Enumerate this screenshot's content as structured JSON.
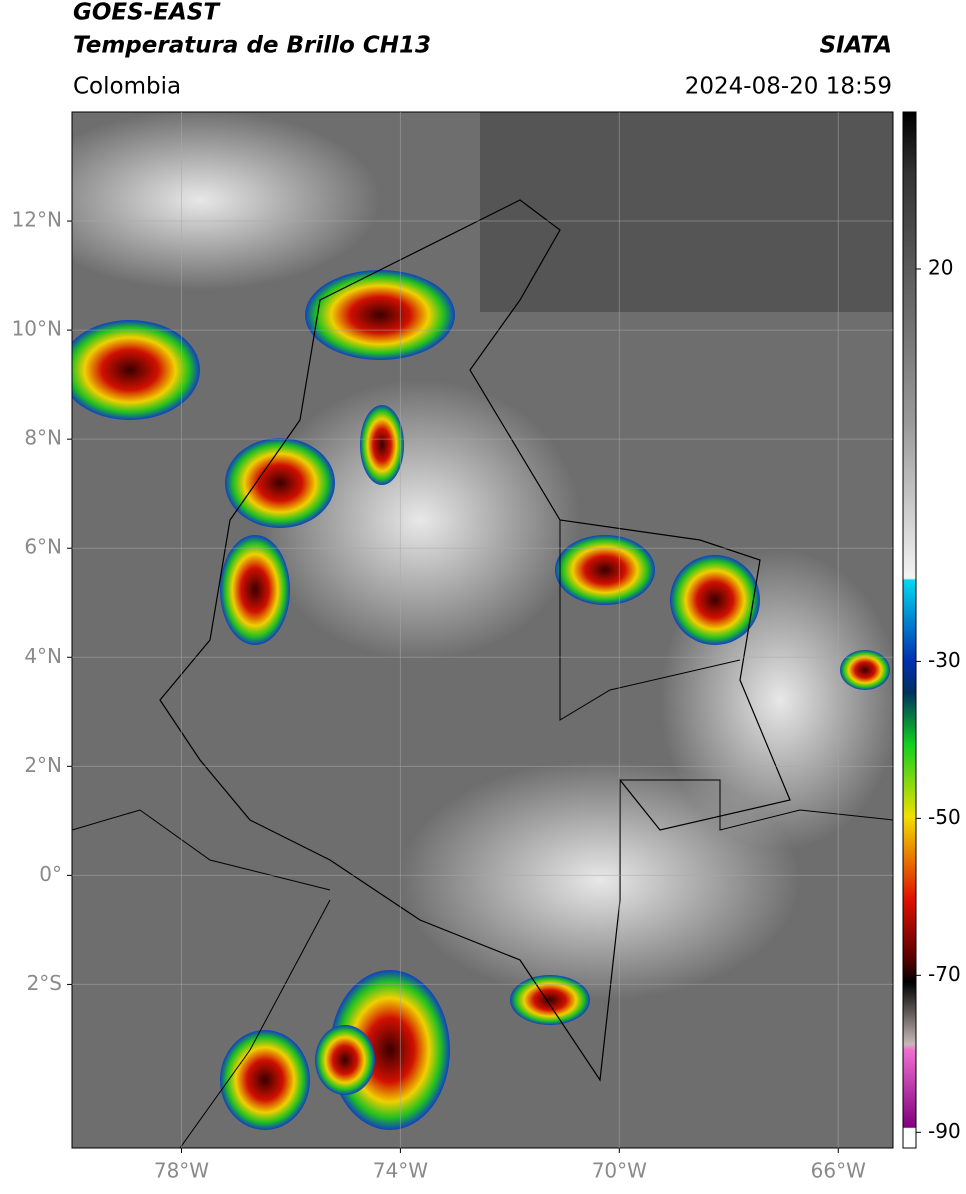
{
  "header": {
    "title": "GOES-EAST",
    "subtitle": "Temperatura de Brillo CH13",
    "region": "Colombia",
    "source": "SIATA",
    "datetime": "2024-08-20 18:59"
  },
  "map": {
    "xlim": [
      -80,
      -65
    ],
    "ylim": [
      -5,
      14
    ],
    "xticks": [
      {
        "value": -78,
        "label": "78°W"
      },
      {
        "value": -74,
        "label": "74°W"
      },
      {
        "value": -70,
        "label": "70°W"
      },
      {
        "value": -66,
        "label": "66°W"
      }
    ],
    "yticks": [
      {
        "value": 12,
        "label": "12°N"
      },
      {
        "value": 10,
        "label": "10°N"
      },
      {
        "value": 8,
        "label": "8°N"
      },
      {
        "value": 6,
        "label": "6°N"
      },
      {
        "value": 4,
        "label": "4°N"
      },
      {
        "value": 2,
        "label": "2°N"
      },
      {
        "value": 0,
        "label": "0°"
      },
      {
        "value": -2,
        "label": "2°S"
      }
    ],
    "grid": true
  },
  "colorbar": {
    "lim": [
      -92,
      40
    ],
    "ticks": [
      20,
      -30,
      -50,
      -70,
      -90
    ]
  }
}
